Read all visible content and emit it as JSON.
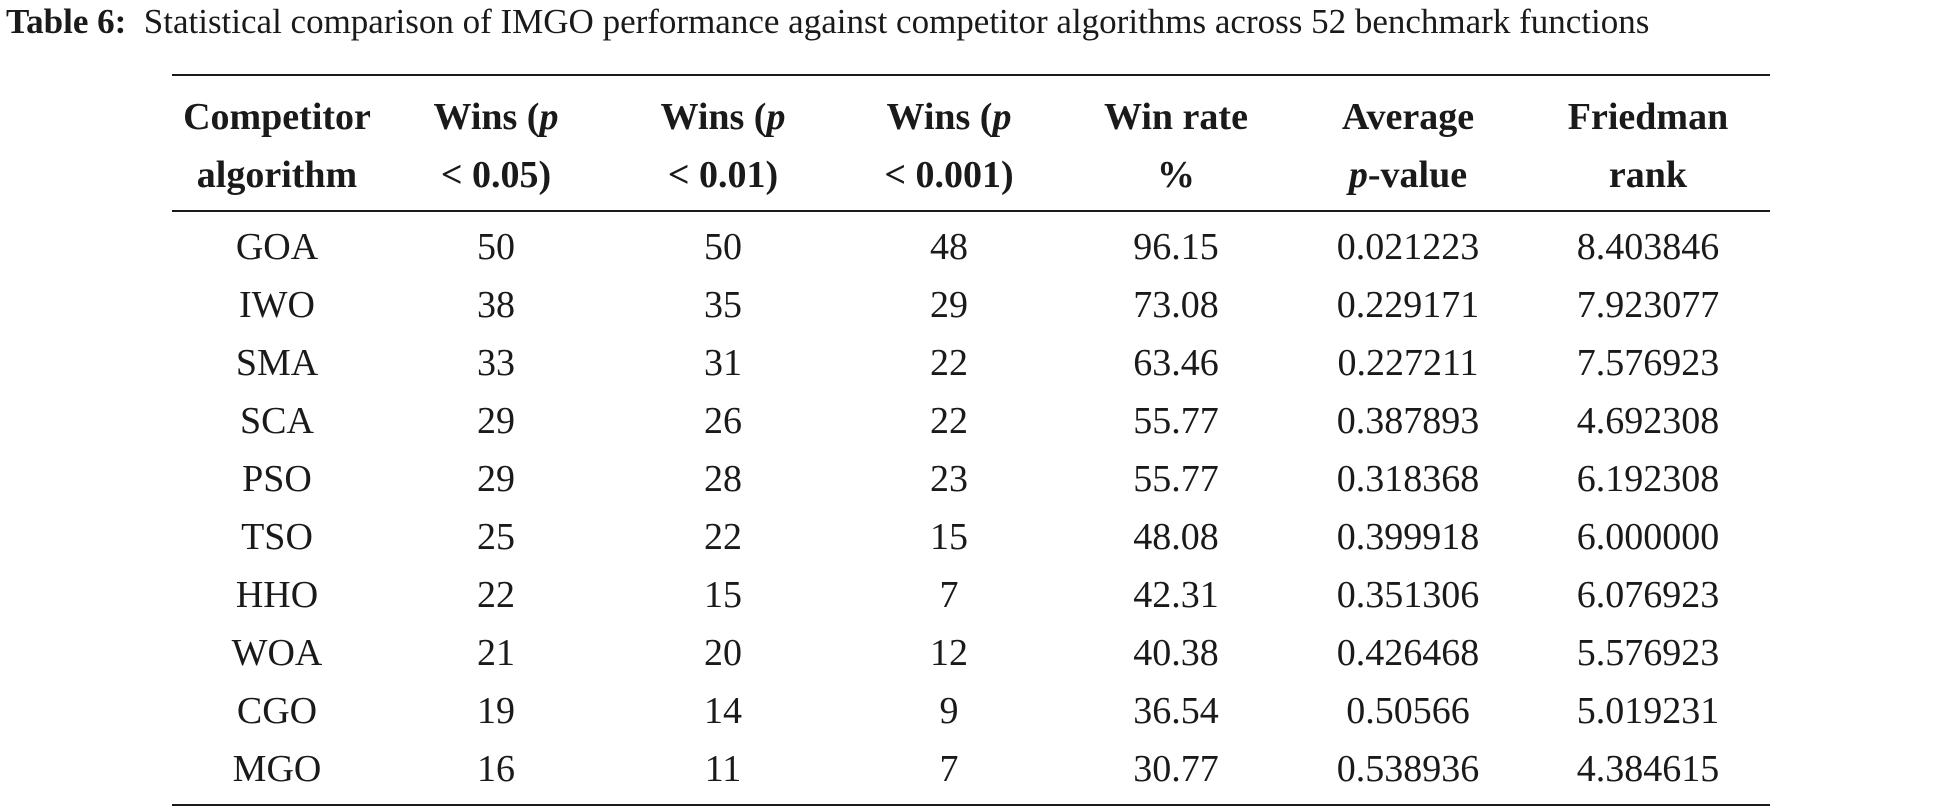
{
  "caption": {
    "label": "Table 6:",
    "text": "Statistical comparison of IMGO performance against competitor algorithms across 52 benchmark functions"
  },
  "table": {
    "headers": [
      {
        "line1": "Competitor",
        "line2": "algorithm"
      },
      {
        "line1_a": "Wins (",
        "line1_b": "p",
        "line2": "< 0.05)"
      },
      {
        "line1_a": "Wins (",
        "line1_b": "p",
        "line2": "< 0.01)"
      },
      {
        "line1_a": "Wins (",
        "line1_b": "p",
        "line2": "< 0.001)"
      },
      {
        "line1": "Win rate",
        "line2": "%"
      },
      {
        "line1": "Average",
        "line2_a": "p",
        "line2_b": "-value"
      },
      {
        "line1": "Friedman",
        "line2": "rank"
      }
    ],
    "rows": [
      [
        "GOA",
        "50",
        "50",
        "48",
        "96.15",
        "0.021223",
        "8.403846"
      ],
      [
        "IWO",
        "38",
        "35",
        "29",
        "73.08",
        "0.229171",
        "7.923077"
      ],
      [
        "SMA",
        "33",
        "31",
        "22",
        "63.46",
        "0.227211",
        "7.576923"
      ],
      [
        "SCA",
        "29",
        "26",
        "22",
        "55.77",
        "0.387893",
        "4.692308"
      ],
      [
        "PSO",
        "29",
        "28",
        "23",
        "55.77",
        "0.318368",
        "6.192308"
      ],
      [
        "TSO",
        "25",
        "22",
        "15",
        "48.08",
        "0.399918",
        "6.000000"
      ],
      [
        "HHO",
        "22",
        "15",
        "7",
        "42.31",
        "0.351306",
        "6.076923"
      ],
      [
        "WOA",
        "21",
        "20",
        "12",
        "40.38",
        "0.426468",
        "5.576923"
      ],
      [
        "CGO",
        "19",
        "14",
        "9",
        "36.54",
        "0.50566",
        "5.019231"
      ],
      [
        "MGO",
        "16",
        "11",
        "7",
        "30.77",
        "0.538936",
        "4.384615"
      ]
    ]
  }
}
